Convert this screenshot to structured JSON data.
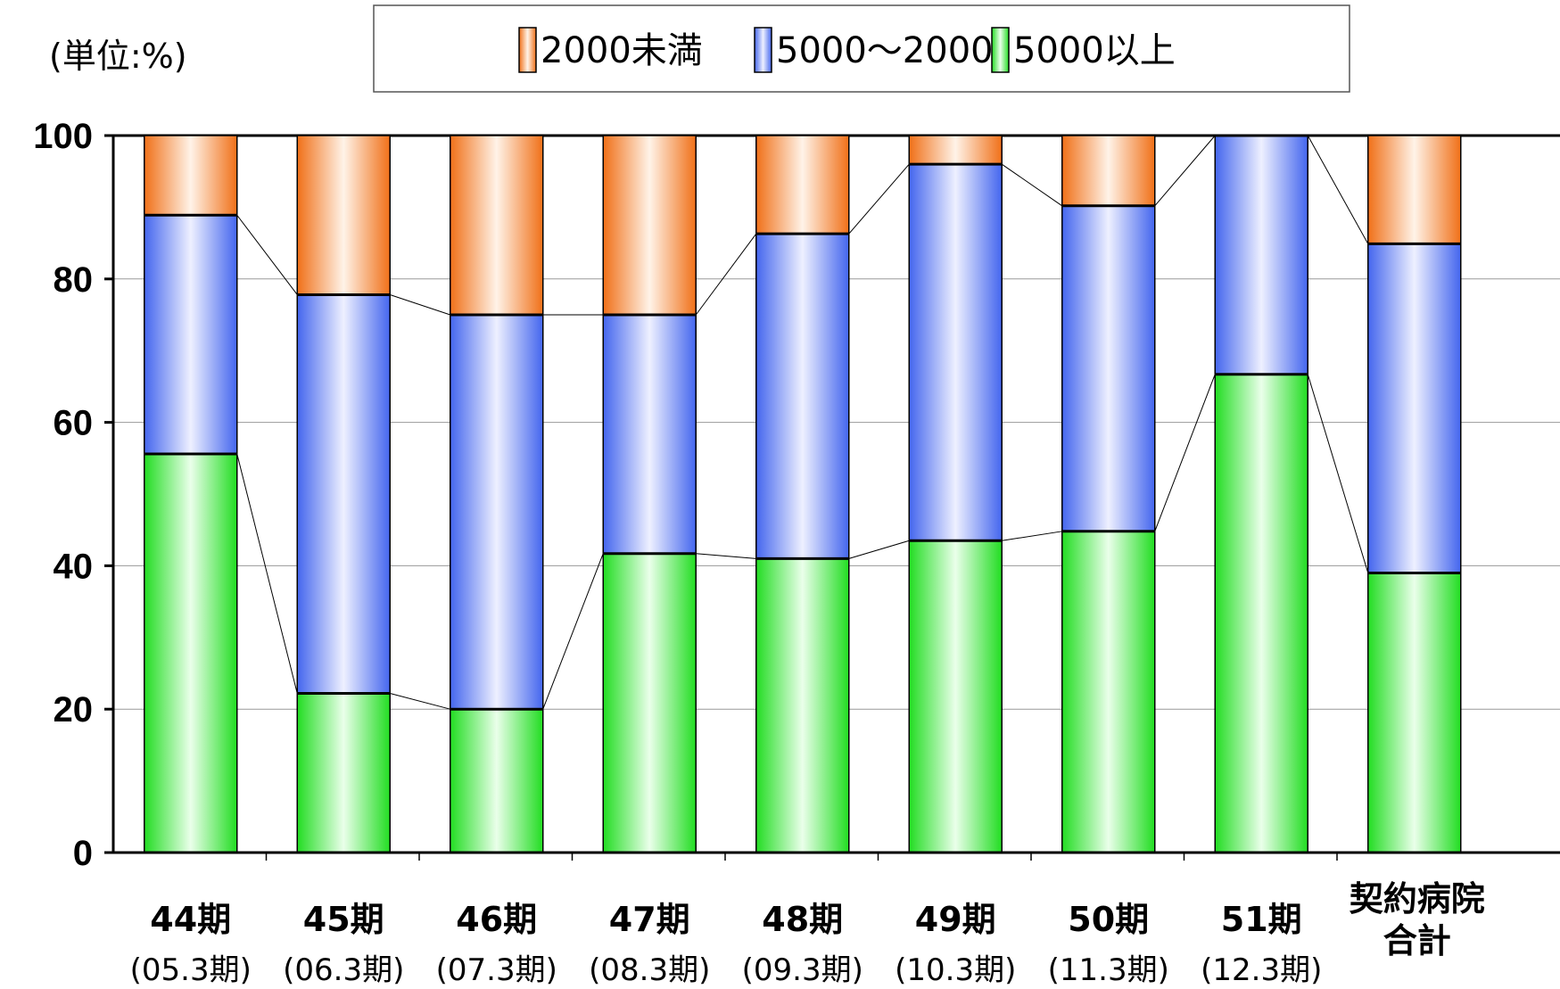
{
  "chart_data": {
    "type": "bar",
    "stacked": true,
    "unit_label": "(単位:%)",
    "ylim": [
      0,
      100
    ],
    "yticks": [
      0,
      20,
      40,
      60,
      80,
      100
    ],
    "grid": true,
    "legend_position": "top",
    "categories": [
      {
        "label": "44期",
        "sub": "(05.3期)"
      },
      {
        "label": "45期",
        "sub": "(06.3期)"
      },
      {
        "label": "46期",
        "sub": "(07.3期)"
      },
      {
        "label": "47期",
        "sub": "(08.3期)"
      },
      {
        "label": "48期",
        "sub": "(09.3期)"
      },
      {
        "label": "49期",
        "sub": "(10.3期)"
      },
      {
        "label": "50期",
        "sub": "(11.3期)"
      },
      {
        "label": "51期",
        "sub": "(12.3期)"
      },
      {
        "label": "契約病院",
        "sub": "合計"
      }
    ],
    "series": [
      {
        "name": "5000以上",
        "color": "#33ee33",
        "values": [
          55.6,
          22.2,
          20.0,
          41.7,
          41.0,
          43.5,
          44.8,
          66.7,
          39.0
        ]
      },
      {
        "name": "5000～2000",
        "color": "#5577ee",
        "values": [
          33.3,
          55.6,
          55.0,
          33.3,
          45.3,
          52.5,
          45.4,
          33.3,
          45.9
        ]
      },
      {
        "name": "2000未満",
        "color": "#f27a22",
        "values": [
          11.1,
          22.2,
          25.0,
          25.0,
          13.7,
          4.0,
          9.8,
          0.0,
          15.1
        ]
      }
    ],
    "legend_order": [
      "2000未満",
      "5000～2000",
      "5000以上"
    ]
  }
}
